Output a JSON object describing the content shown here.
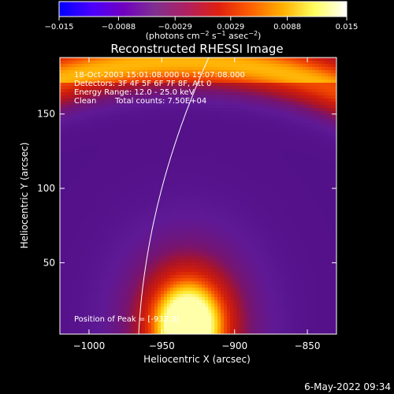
{
  "chart_data": {
    "type": "heatmap",
    "title": "Reconstructed RHESSI Image",
    "xlabel": "Heliocentric X (arcsec)",
    "ylabel": "Heliocentric Y (arcsec)",
    "xlim": [
      -1020,
      -830
    ],
    "ylim": [
      2,
      188
    ],
    "x_ticks": [
      -1000,
      -950,
      -900,
      -850
    ],
    "x_tick_labels": [
      "−1000",
      "−950",
      "−900",
      "−850"
    ],
    "y_ticks": [
      50,
      100,
      150
    ],
    "y_tick_labels": [
      "50",
      "100",
      "150"
    ],
    "colorbar": {
      "min": -0.015,
      "max": 0.015,
      "ticks": [
        -0.015,
        -0.0088,
        -0.0029,
        0.0029,
        0.0088,
        0.015
      ],
      "tick_labels": [
        "−0.015",
        "−0.0088",
        "−0.0029",
        "0.0029",
        "0.0088",
        "0.015"
      ],
      "unit_label": "(photons cm",
      "unit_sup1": "−2",
      "unit_mid": " s",
      "unit_sup2": "−1",
      "unit_mid2": " asec",
      "unit_sup3": "−2",
      "unit_end": ")",
      "colors": [
        "#0000ff",
        "#4a00ff",
        "#7000c0",
        "#803090",
        "#b02060",
        "#e02010",
        "#ff6000",
        "#ffb000",
        "#ffff60",
        "#ffffff"
      ]
    },
    "annotations": {
      "line1": "18-Oct-2003 15:01:08.000 to 15:07:08.000",
      "line2": "Detectors: 3F 4F 5F 6F 7F 8F, Att 0",
      "line3": "Energy Range: 12.0 - 25.0 keV",
      "line4a": "Clean",
      "line4b": "Total counts: 7.50E+04",
      "peak": "Position of Peak = [-932.3]"
    },
    "peak_position": [
      -932.3,
      10
    ],
    "limb_color": "#ffffff",
    "features": {
      "bright_source_center": [
        -932,
        8
      ],
      "outer_arc_center": [
        -935,
        -40
      ]
    }
  },
  "footer": {
    "timestamp": "6-May-2022 09:34"
  }
}
